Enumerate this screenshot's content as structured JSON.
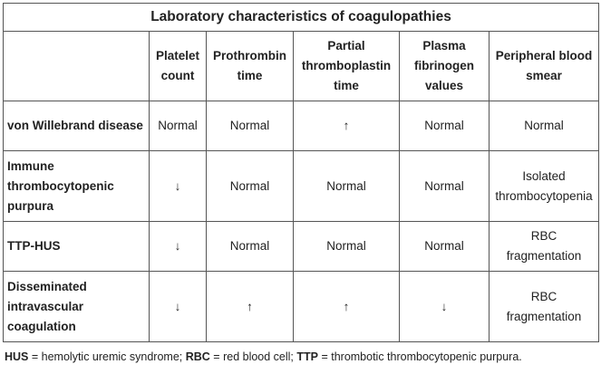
{
  "title": "Laboratory characteristics of coagulopathies",
  "columns": [
    "",
    "Platelet count",
    "Prothrombin time",
    "Partial thromboplastin time",
    "Plasma fibrinogen values",
    "Peripheral blood smear"
  ],
  "rows": [
    {
      "name": "von Willebrand disease",
      "values": [
        "Normal",
        "Normal",
        "↑",
        "Normal",
        "Normal"
      ]
    },
    {
      "name": "Immune thrombocytopenic purpura",
      "values": [
        "↓",
        "Normal",
        "Normal",
        "Normal",
        "Isolated thrombocytopenia"
      ]
    },
    {
      "name": "TTP-HUS",
      "values": [
        "↓",
        "Normal",
        "Normal",
        "Normal",
        "RBC fragmentation"
      ]
    },
    {
      "name": "Disseminated intravascular coagulation",
      "values": [
        "↓",
        "↑",
        "↑",
        "↓",
        "RBC fragmentation"
      ]
    }
  ],
  "footnote": {
    "items": [
      {
        "abbr": "HUS",
        "text": " = hemolytic uremic syndrome; "
      },
      {
        "abbr": "RBC",
        "text": " = red blood cell; "
      },
      {
        "abbr": "TTP",
        "text": " = thrombotic thrombocytopenic purpura."
      }
    ]
  }
}
